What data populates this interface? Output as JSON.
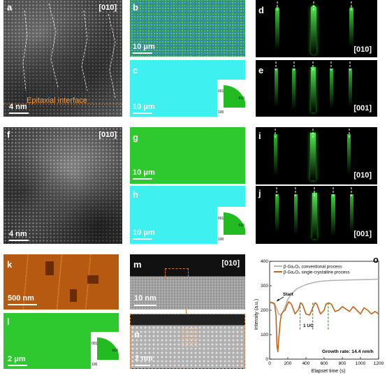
{
  "panels": {
    "a": {
      "letter": "a",
      "direction": "[010]",
      "scale": "4 nm",
      "annotation": "Epitaxial interface"
    },
    "b": {
      "letter": "b",
      "scale": "10 μm"
    },
    "c": {
      "letter": "c",
      "scale": "10 μm",
      "key": {
        "t1": "001",
        "t2": "010",
        "t3": "100"
      }
    },
    "d": {
      "letter": "d",
      "direction": "[010]"
    },
    "e": {
      "letter": "e",
      "direction": "[001]"
    },
    "f": {
      "letter": "f",
      "direction": "[010]",
      "scale": "4 nm"
    },
    "g": {
      "letter": "g",
      "scale": "10 μm"
    },
    "h": {
      "letter": "h",
      "scale": "10 μm",
      "key": {
        "t1": "001",
        "t2": "010",
        "t3": "100"
      }
    },
    "i": {
      "letter": "i",
      "direction": "[010]"
    },
    "j": {
      "letter": "j",
      "direction": "[001]"
    },
    "k": {
      "letter": "k",
      "scale": "500 nm"
    },
    "l": {
      "letter": "l",
      "scale": "2 μm",
      "key": {
        "t1": "001",
        "t2": "010",
        "t3": "100"
      }
    },
    "m": {
      "letter": "m",
      "direction": "[010]",
      "scale": "10 nm"
    },
    "n": {
      "letter": "n",
      "scale": "2 nm"
    },
    "o": {
      "letter": "o"
    }
  },
  "colors": {
    "orange": "#c06515",
    "gray": "#b5b5b5",
    "green": "#2ec92e",
    "cyan": "#3ff0f0",
    "rheed": "#36d636"
  },
  "chart_data": {
    "type": "line",
    "xlabel": "Elapset time (s)",
    "ylabel": "Intensity (a.u.)",
    "xlim": [
      0,
      1200
    ],
    "ylim": [
      0,
      400
    ],
    "xticks": [
      "0",
      "200",
      "400",
      "600",
      "800",
      "1000",
      "1200"
    ],
    "yticks": [
      "0",
      "100",
      "200",
      "300",
      "400"
    ],
    "legend_position": "top-left",
    "series": [
      {
        "name": "β-Ga₂O₃ conventional process",
        "color": "#b5b5b5",
        "x": [
          0,
          50,
          80,
          100,
          120,
          140,
          160,
          180,
          200,
          250,
          300,
          400,
          500,
          600,
          700,
          800,
          900,
          1000,
          1100,
          1200
        ],
        "y": [
          235,
          230,
          205,
          185,
          180,
          188,
          205,
          225,
          245,
          270,
          288,
          305,
          315,
          320,
          322,
          323,
          324,
          325,
          326,
          327
        ]
      },
      {
        "name": "β-Ga₂O₃ single-crystalline process",
        "color": "#c06515",
        "x": [
          0,
          30,
          55,
          70,
          80,
          90,
          100,
          115,
          130,
          150,
          170,
          190,
          210,
          240,
          280,
          320,
          340,
          360,
          400,
          440,
          480,
          500,
          520,
          560,
          600,
          620,
          650,
          680,
          720,
          760,
          800,
          840,
          880,
          920,
          960,
          1000,
          1040,
          1080,
          1120,
          1160,
          1200
        ],
        "y": [
          232,
          230,
          225,
          180,
          60,
          30,
          80,
          150,
          185,
          195,
          200,
          220,
          235,
          225,
          185,
          205,
          230,
          225,
          185,
          180,
          215,
          230,
          225,
          185,
          200,
          225,
          230,
          225,
          195,
          200,
          215,
          205,
          195,
          215,
          200,
          185,
          210,
          200,
          185,
          195,
          185
        ]
      }
    ],
    "annotations": {
      "start": "Start",
      "uc": "1 UC",
      "rate": "Growth rate: 14.4 nm/h"
    },
    "uc_markers": [
      335,
      475,
      645
    ]
  }
}
